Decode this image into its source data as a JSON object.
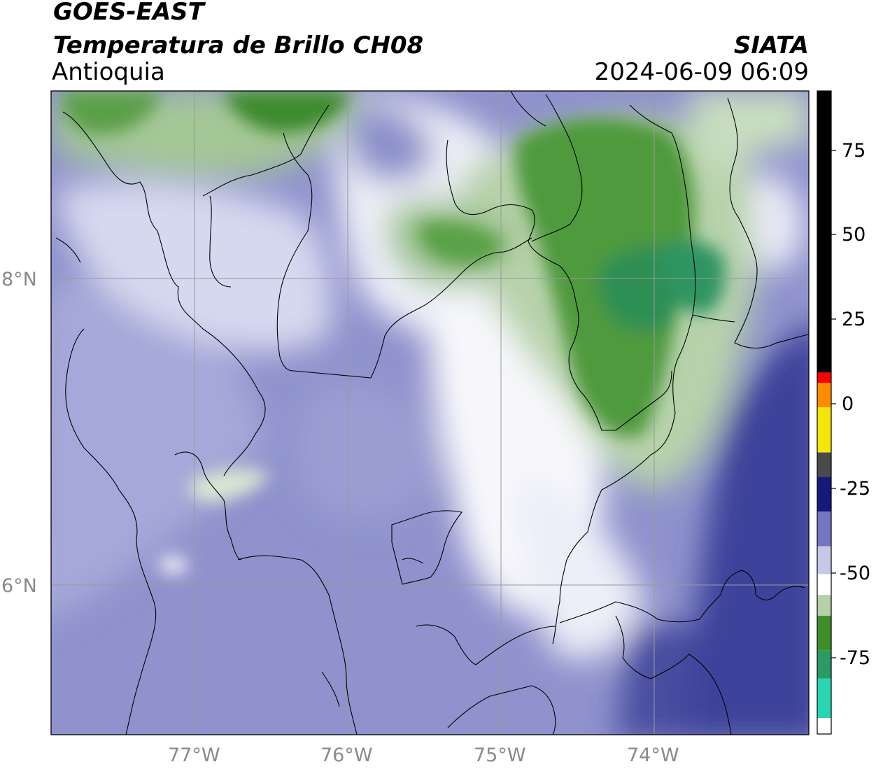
{
  "header": {
    "satellite": "GOES-EAST",
    "product": "Temperatura de Brillo CH08",
    "region": "Antioquia",
    "agency": "SIATA",
    "datetime": "2024-06-09 06:09"
  },
  "map": {
    "lon_labels": [
      "77°W",
      "76°W",
      "75°W",
      "74°W"
    ],
    "lat_labels": [
      "8°N",
      "6°N"
    ],
    "lon_range": [
      -77.95,
      -73.0
    ],
    "lat_range": [
      5.05,
      9.25
    ],
    "gridlines": true
  },
  "colorbar": {
    "tick_labels": [
      "75",
      "50",
      "25",
      "0",
      "-25",
      "-50",
      "-75"
    ],
    "range": [
      -94,
      91
    ],
    "segments": [
      {
        "from": 10,
        "to": 91,
        "color": "#000000"
      },
      {
        "from": 7,
        "to": 10,
        "color": "#ff0000"
      },
      {
        "from": 0,
        "to": 7,
        "color": "#ff8c00"
      },
      {
        "from": -13,
        "to": 0,
        "color": "#f5e60a"
      },
      {
        "from": -20,
        "to": -13,
        "color": "#4a4a4a"
      },
      {
        "from": -30,
        "to": -20,
        "color": "#141a7a"
      },
      {
        "from": -40,
        "to": -30,
        "color": "#7076c2"
      },
      {
        "from": -48,
        "to": -40,
        "color": "#c6c8e8"
      },
      {
        "from": -54,
        "to": -48,
        "color": "#ffffff"
      },
      {
        "from": -60,
        "to": -54,
        "color": "#b5d1a8"
      },
      {
        "from": -70,
        "to": -60,
        "color": "#3f8e2a"
      },
      {
        "from": -78,
        "to": -70,
        "color": "#2a9a66"
      },
      {
        "from": -90,
        "to": -78,
        "color": "#28d6b2"
      },
      {
        "from": -94,
        "to": -90,
        "color": "#00f0e6"
      }
    ]
  },
  "colors": {
    "cold_cloud": "#3a8a2e",
    "warm_water_vapor": "#6c70b8",
    "border_lines": "#000000",
    "grid_lines": "#9a9a9a"
  }
}
